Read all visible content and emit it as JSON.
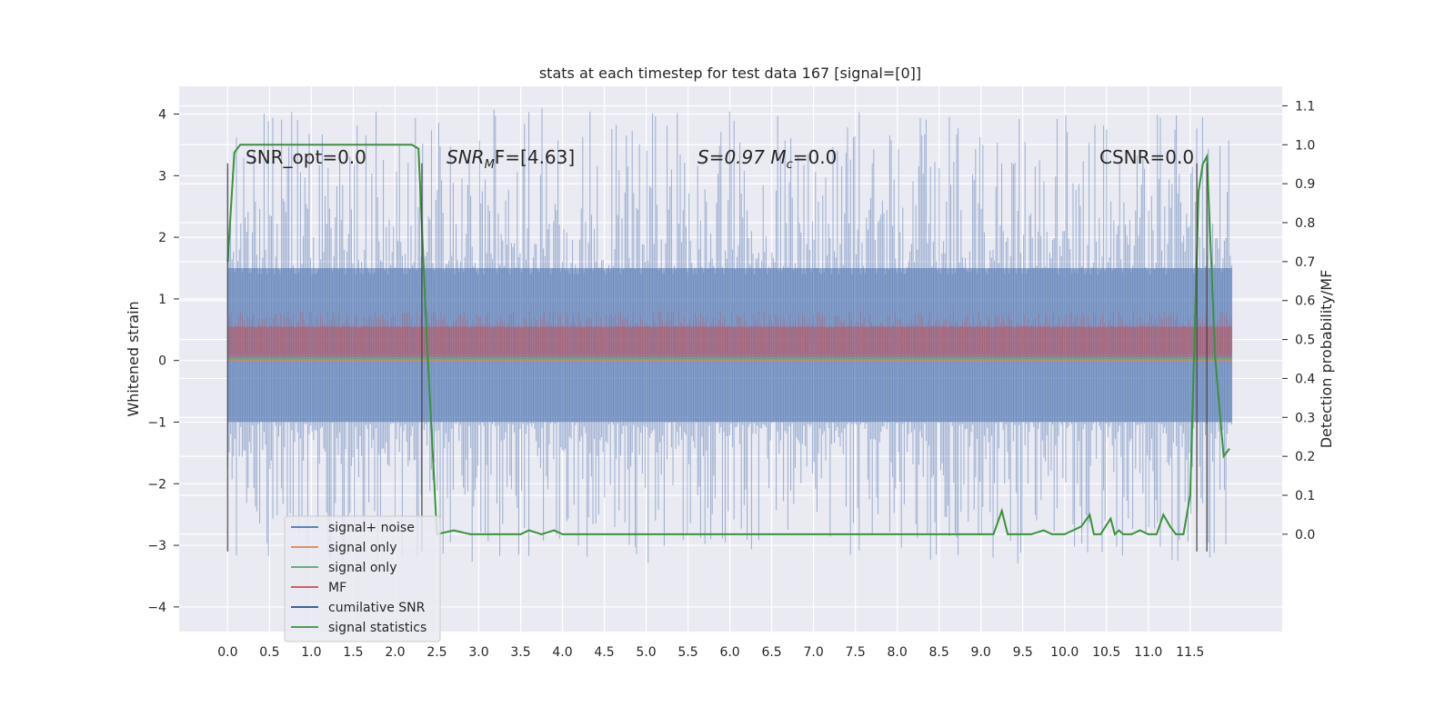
{
  "chart_data": {
    "type": "line",
    "title": "stats at each timestep for test data 167 [signal=[0]]",
    "ylabel": "Whitened strain",
    "y2label": "Detection probability/MF",
    "xlim": [
      -0.58,
      12.6
    ],
    "ylim": [
      -4.4,
      4.45
    ],
    "y2lim": [
      -0.25,
      1.15
    ],
    "xticks": [
      "0.0",
      "0.5",
      "1.0",
      "1.5",
      "2.0",
      "2.5",
      "3.0",
      "3.5",
      "4.0",
      "4.5",
      "5.0",
      "5.5",
      "6.0",
      "6.5",
      "7.0",
      "7.5",
      "8.0",
      "8.5",
      "9.0",
      "9.5",
      "10.0",
      "10.5",
      "11.0",
      "11.5"
    ],
    "yticks": [
      4,
      3,
      2,
      1,
      0,
      -1,
      -2,
      -3,
      -4
    ],
    "y2ticks": [
      "1.1",
      "1.0",
      "0.9",
      "0.8",
      "0.7",
      "0.6",
      "0.5",
      "0.4",
      "0.3",
      "0.2",
      "0.1",
      "0.0"
    ],
    "grid": true,
    "legend_position": "lower-left",
    "annotations": [
      {
        "text": "SNR_opt=0.0"
      },
      {
        "text": "SNR",
        "sub": "M",
        "rest": "F=[4.63]"
      },
      {
        "text": "S=0.97   M",
        "sub": "c",
        "rest": "=0.0"
      },
      {
        "text": "CSNR=0.0"
      }
    ],
    "vlines_x": [
      0.0,
      2.32,
      11.58,
      11.7
    ],
    "series": [
      {
        "name": "signal+ noise",
        "color": "#4c72b0",
        "band_y": [
          -1.0,
          1.5
        ],
        "spike_range": [
          -3.3,
          4.1
        ],
        "x_range": [
          0.0,
          12.0
        ]
      },
      {
        "name": "signal only",
        "color": "#dd8452",
        "values_y": 0.0
      },
      {
        "name": "signal only",
        "color": "#55a868",
        "values_y": 0.03
      },
      {
        "name": "MF",
        "color": "#c44e52",
        "band_y": [
          0.05,
          0.55
        ],
        "x_range": [
          0.0,
          12.0
        ]
      },
      {
        "name": "cumilative SNR",
        "color": "#2a4d8f"
      },
      {
        "name": "signal statistics",
        "color": "#3a923a",
        "x": [
          0.0,
          0.08,
          0.15,
          0.3,
          2.2,
          2.28,
          2.38,
          2.5,
          2.7,
          2.9,
          3.3,
          3.5,
          3.6,
          3.75,
          3.9,
          4.0,
          4.1,
          4.5,
          5.0,
          6.0,
          7.0,
          8.0,
          8.9,
          9.0,
          9.15,
          9.25,
          9.32,
          9.45,
          9.6,
          9.75,
          9.85,
          10.0,
          10.1,
          10.2,
          10.3,
          10.35,
          10.43,
          10.55,
          10.6,
          10.65,
          10.7,
          10.8,
          10.9,
          11.0,
          11.1,
          11.18,
          11.26,
          11.33,
          11.42,
          11.5,
          11.6,
          11.65,
          11.7,
          11.8,
          11.9,
          11.97
        ],
        "y": [
          0.7,
          0.98,
          1.0,
          1.0,
          1.0,
          0.99,
          0.5,
          0.0,
          0.01,
          0.0,
          0.0,
          0.0,
          0.01,
          0.0,
          0.01,
          0.0,
          0.0,
          0.0,
          0.0,
          0.0,
          0.0,
          0.0,
          0.0,
          0.0,
          0.0,
          0.06,
          0.0,
          0.0,
          0.0,
          0.01,
          0.0,
          0.0,
          0.01,
          0.02,
          0.05,
          0.0,
          0.0,
          0.04,
          0.0,
          0.01,
          0.0,
          0.0,
          0.01,
          0.0,
          0.0,
          0.05,
          0.02,
          0.0,
          0.0,
          0.1,
          0.88,
          0.95,
          0.97,
          0.45,
          0.2,
          0.22
        ]
      }
    ]
  }
}
